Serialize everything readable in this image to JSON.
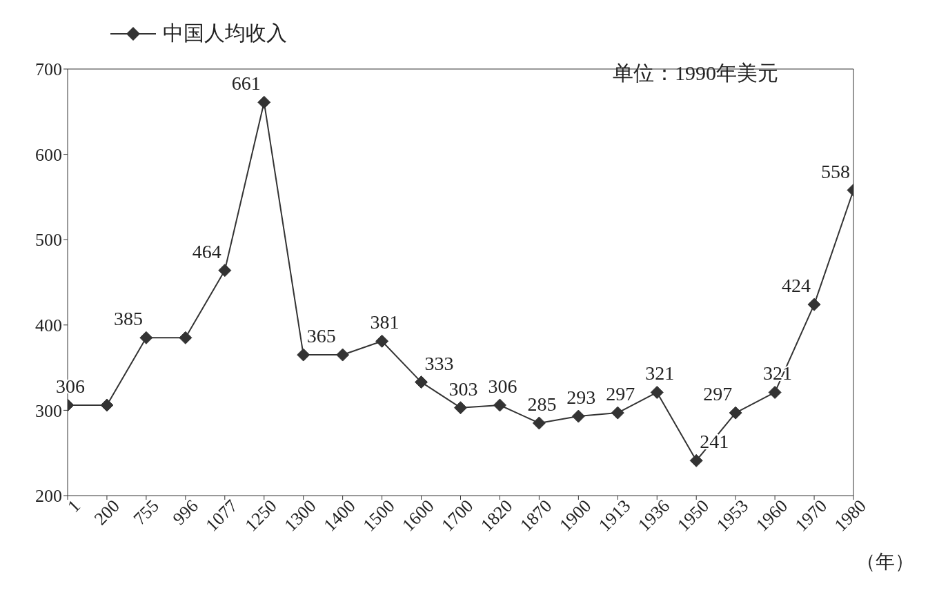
{
  "chart_data": {
    "type": "line",
    "xlabel": "（年）",
    "annotations": [
      "单位：1990年美元"
    ],
    "categories": [
      "1",
      "200",
      "755",
      "996",
      "1077",
      "1250",
      "1300",
      "1400",
      "1500",
      "1600",
      "1700",
      "1820",
      "1870",
      "1900",
      "1913",
      "1936",
      "1950",
      "1953",
      "1960",
      "1970",
      "1980"
    ],
    "series": [
      {
        "name": "中国人均收入",
        "color": "#333333",
        "values": [
          306,
          306,
          385,
          385,
          464,
          661,
          365,
          365,
          381,
          333,
          303,
          306,
          285,
          293,
          297,
          321,
          241,
          297,
          321,
          424,
          558
        ],
        "value_labels": [
          "306",
          null,
          "385",
          null,
          "464",
          "661",
          "365",
          null,
          "381",
          "333",
          "303",
          "306",
          "285",
          "293",
          "297",
          "321",
          "241",
          "297",
          "321",
          "424",
          "558"
        ]
      }
    ],
    "ylim": [
      200,
      700
    ],
    "yticks": [
      200,
      300,
      400,
      500,
      600,
      700
    ],
    "legend": "top left",
    "marker": "diamond",
    "line_style": "solid"
  }
}
